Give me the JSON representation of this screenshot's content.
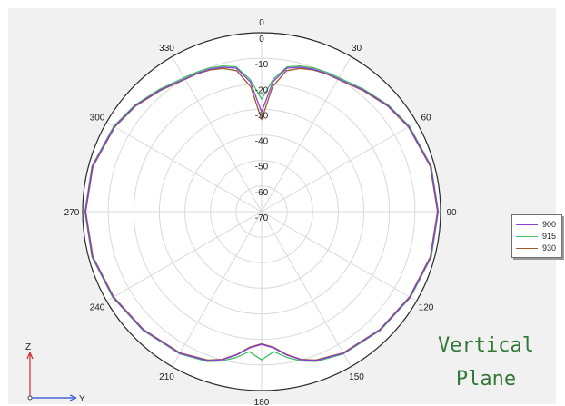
{
  "chart_data": {
    "type": "polar-line",
    "angle_unit": "degrees",
    "angle_zero": "top",
    "angle_direction": "clockwise",
    "angle_ticks": [
      "0",
      "30",
      "60",
      "90",
      "120",
      "150",
      "180",
      "210",
      "240",
      "270",
      "300",
      "330"
    ],
    "radial_ticks": [
      "0",
      "-10",
      "-20",
      "-30",
      "-40",
      "-50",
      "-60",
      "-70"
    ],
    "r_range": [
      -70,
      0
    ],
    "grid": true,
    "legend_position": "right",
    "angles": [
      0,
      5,
      10,
      15,
      20,
      25,
      30,
      40,
      50,
      60,
      75,
      90,
      105,
      120,
      135,
      150,
      160,
      165,
      170,
      175,
      180,
      185,
      190,
      195,
      200,
      210,
      225,
      240,
      255,
      270,
      285,
      300,
      310,
      320,
      330,
      335,
      340,
      345,
      350,
      355
    ],
    "series": [
      {
        "name": "900",
        "color": "#8a3fd6",
        "values": [
          -31,
          -19,
          -13,
          -11.5,
          -10.7,
          -10.3,
          -10,
          -8,
          -5.5,
          -3.5,
          -1.5,
          -1,
          -1.5,
          -3,
          -4.5,
          -6,
          -8,
          -10,
          -13,
          -16.5,
          -18,
          -16.5,
          -13,
          -10,
          -8,
          -6,
          -4.5,
          -3,
          -1.5,
          -1,
          -1.5,
          -3.5,
          -5.5,
          -8,
          -10,
          -10.3,
          -10.7,
          -11.5,
          -13,
          -19
        ]
      },
      {
        "name": "915",
        "color": "#3fbf5f",
        "values": [
          -26,
          -18,
          -12.5,
          -11,
          -10.2,
          -9.8,
          -9.5,
          -7.6,
          -5.2,
          -3.2,
          -1.3,
          -0.9,
          -1.3,
          -2.8,
          -4.3,
          -5.8,
          -7.6,
          -9.5,
          -12,
          -15,
          -12,
          -15,
          -12,
          -9.5,
          -7.6,
          -5.8,
          -4.3,
          -2.8,
          -1.3,
          -0.9,
          -1.3,
          -3.2,
          -5.2,
          -7.6,
          -9.5,
          -9.8,
          -10.2,
          -11,
          -12.5,
          -18
        ]
      },
      {
        "name": "930",
        "color": "#9a5a2c",
        "values": [
          -34,
          -21,
          -14,
          -12,
          -11,
          -10.5,
          -10.2,
          -8.2,
          -5.7,
          -3.7,
          -1.7,
          -1.2,
          -1.7,
          -3.2,
          -4.7,
          -6.2,
          -8.2,
          -10.2,
          -13.2,
          -16.8,
          -18.3,
          -16.8,
          -13.2,
          -10.2,
          -8.2,
          -6.2,
          -4.7,
          -3.2,
          -1.7,
          -1.2,
          -1.7,
          -3.7,
          -5.7,
          -8.2,
          -10.2,
          -10.5,
          -11,
          -12,
          -14,
          -21
        ]
      }
    ]
  },
  "axis_indicator": {
    "z_label": "Z",
    "y_label": "Y"
  },
  "caption": {
    "line1": "Vertical",
    "line2": "Plane"
  }
}
